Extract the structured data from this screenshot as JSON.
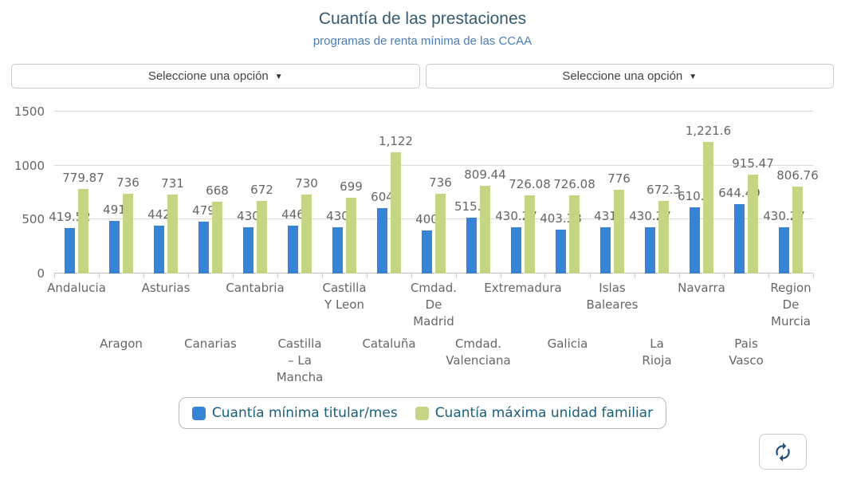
{
  "header": {
    "title": "Cuantía de las prestaciones",
    "subtitle": "programas de renta mínima de las CCAA"
  },
  "filters": {
    "select1": {
      "label": "Seleccione una opción",
      "caret": "▼"
    },
    "select2": {
      "label": "Seleccione una opción",
      "caret": "▼"
    }
  },
  "icons": {
    "refresh": "refresh-sync-arrows",
    "dropdown": "chevron-down"
  },
  "colors": {
    "bar_blue": "#3783d6",
    "bar_green": "#c4d583",
    "title_text": "#355a71",
    "subtitle_text": "#4a7db5",
    "axis_text": "#666666",
    "legend_text": "#19607c",
    "gridline": "#d9d9d9"
  },
  "chart_data": {
    "type": "bar",
    "title": "Cuantía de las prestaciones",
    "subtitle": "programas de renta mínima de las CCAA",
    "categories": [
      "Andalucia",
      "Aragon",
      "Asturias",
      "Canarias",
      "Cantabria",
      "Castilla – La Mancha",
      "Castilla Y Leon",
      "Cataluña",
      "Cmdad. De Madrid",
      "Cmdad. Valenciana",
      "Extremadura",
      "Galicia",
      "Islas Baleares",
      "La Rioja",
      "Navarra",
      "Pais Vasco",
      "Region De Murcia"
    ],
    "category_label_lines": [
      [
        "Andalucia"
      ],
      [
        "Aragon"
      ],
      [
        "Asturias"
      ],
      [
        "Canarias"
      ],
      [
        "Cantabria"
      ],
      [
        "Castilla",
        "– La",
        "Mancha"
      ],
      [
        "Castilla",
        "Y Leon"
      ],
      [
        "Cataluña"
      ],
      [
        "Cmdad.",
        "De",
        "Madrid"
      ],
      [
        "Cmdad.",
        "Valenciana"
      ],
      [
        "Extremadura"
      ],
      [
        "Galicia"
      ],
      [
        "Islas",
        "Baleares"
      ],
      [
        "La",
        "Rioja"
      ],
      [
        "Navarra"
      ],
      [
        "Pais",
        "Vasco"
      ],
      [
        "Region",
        "De",
        "Murcia"
      ]
    ],
    "category_label_row": [
      0,
      1,
      0,
      1,
      0,
      1,
      0,
      1,
      0,
      1,
      0,
      1,
      0,
      1,
      0,
      1,
      0
    ],
    "series": [
      {
        "name": "Cuantía mínima titular/mes",
        "color": "#3783d6",
        "values": [
          419.52,
          491,
          442,
          479,
          430,
          446,
          430,
          604,
          400,
          515.3,
          430.27,
          403.38,
          431,
          430.27,
          610.8,
          644.49,
          430.27
        ],
        "labels": [
          "419.52",
          "491",
          "442",
          "479",
          "430",
          "446",
          "430",
          "604",
          "400",
          "515.3",
          "430.27",
          "403.38",
          "431",
          "430.27",
          "610.8",
          "644.49",
          "430.27"
        ]
      },
      {
        "name": "Cuantía máxima unidad familiar",
        "color": "#c4d583",
        "values": [
          779.87,
          736,
          731,
          668,
          672,
          730,
          699,
          1122,
          736,
          809.44,
          726.08,
          726.08,
          776,
          672.3,
          1221.6,
          915.47,
          806.76
        ],
        "labels": [
          "779.87",
          "736",
          "731",
          "668",
          "672",
          "730",
          "699",
          "1,122",
          "736",
          "809.44",
          "726.08",
          "726.08",
          "776",
          "672.3",
          "1,221.6",
          "915.47",
          "806.76"
        ]
      }
    ],
    "yaxis": {
      "ticks": [
        0,
        500,
        1000,
        1500
      ],
      "tick_labels": [
        "0",
        "500",
        "1000",
        "1500"
      ],
      "max": 1500
    },
    "grid": true,
    "legend_position": "bottom"
  }
}
